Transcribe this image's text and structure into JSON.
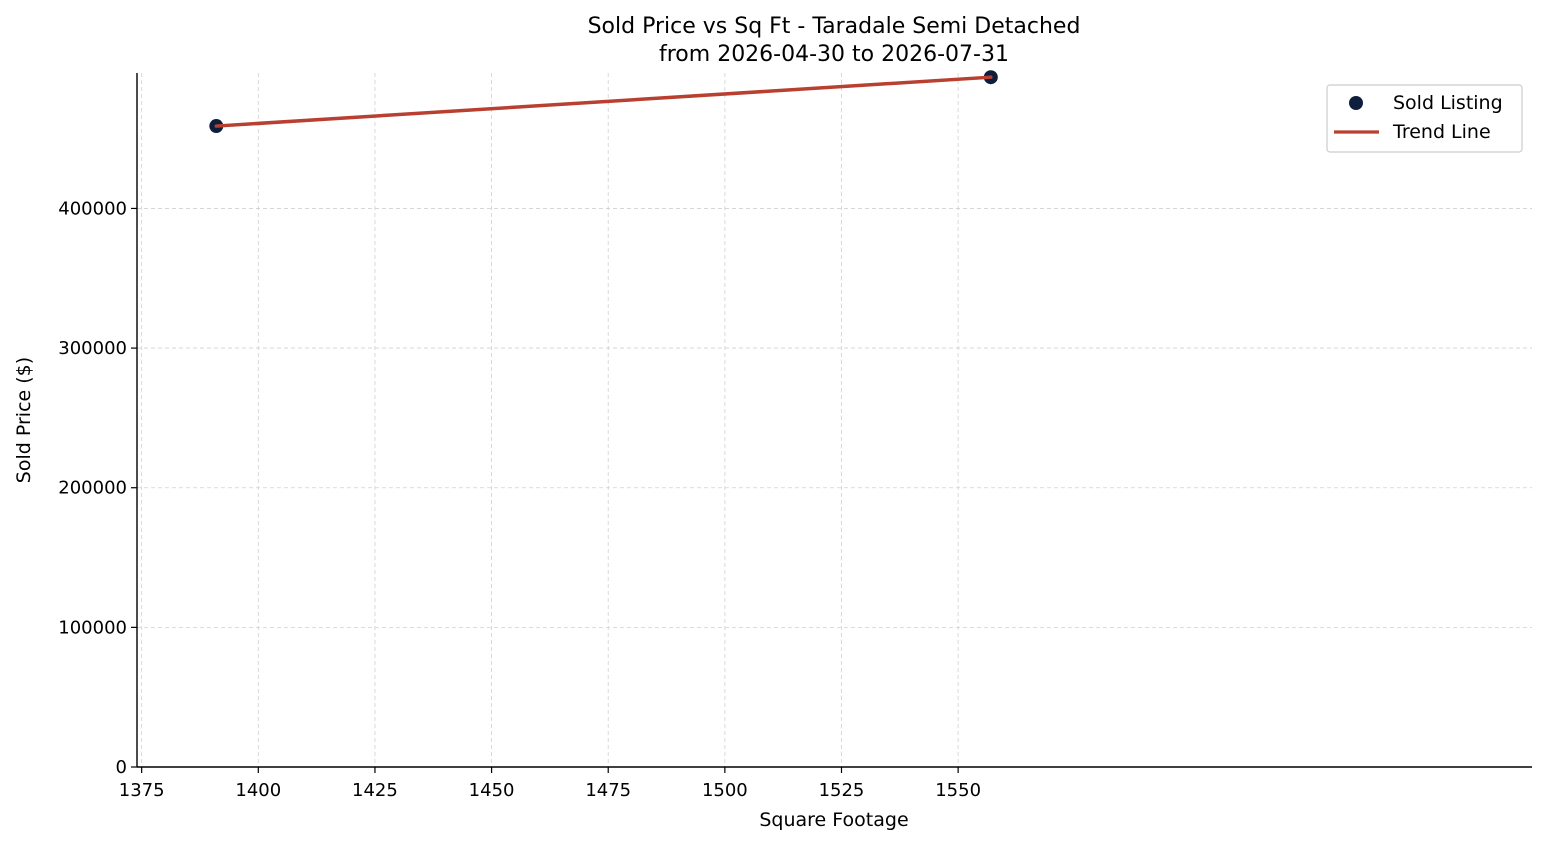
{
  "chart_data": {
    "type": "scatter",
    "title": "Sold Price vs Sq Ft - Taradale Semi Detached",
    "subtitle": "from 2026-04-30 to 2026-07-31",
    "xlabel": "Square Footage",
    "ylabel": "Sold Price ($)",
    "xlim": [
      1374,
      1673
    ],
    "ylim": [
      0,
      497000
    ],
    "xticks": [
      1375,
      1400,
      1425,
      1450,
      1475,
      1500,
      1525,
      1550
    ],
    "yticks": [
      0,
      100000,
      200000,
      300000,
      400000
    ],
    "grid": true,
    "legend_position": "top-right",
    "series": [
      {
        "name": "Sold Listing",
        "kind": "scatter",
        "color": "#0d1f3c",
        "x": [
          1391,
          1557
        ],
        "y": [
          459000,
          494000
        ]
      },
      {
        "name": "Trend Line",
        "kind": "line",
        "color": "#b94030",
        "x": [
          1391,
          1557
        ],
        "y": [
          459000,
          494000
        ]
      }
    ]
  }
}
